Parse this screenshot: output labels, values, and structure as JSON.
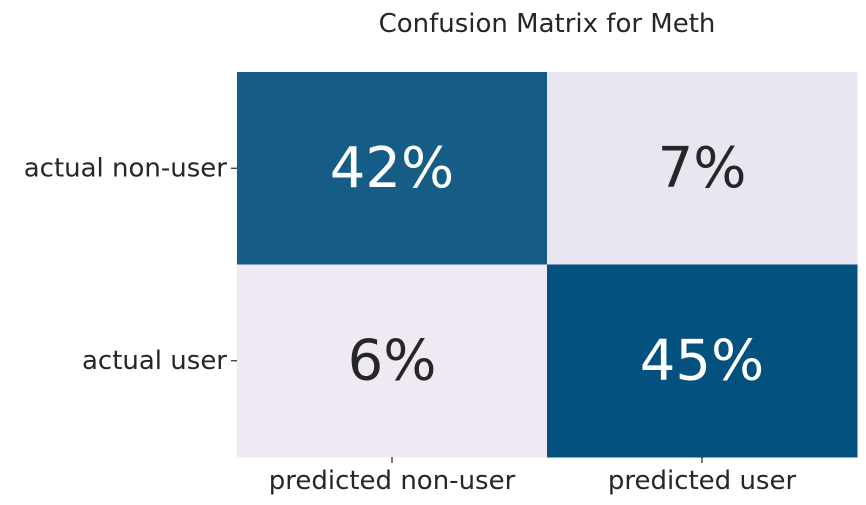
{
  "chart_data": {
    "type": "heatmap",
    "title": "Confusion Matrix for Meth",
    "xlabel": "",
    "ylabel": "",
    "x_categories": [
      "predicted non-user",
      "predicted user"
    ],
    "y_categories": [
      "actual non-user",
      "actual user"
    ],
    "values": [
      [
        42,
        7
      ],
      [
        6,
        45
      ]
    ],
    "value_labels": [
      [
        "42%",
        "7%"
      ],
      [
        "6%",
        "45%"
      ]
    ],
    "colorbar": false
  },
  "colors": {
    "high": "#03517e",
    "low": "#efe9f4",
    "text_on_high": "#ffffff",
    "text_on_low": "#262626"
  }
}
